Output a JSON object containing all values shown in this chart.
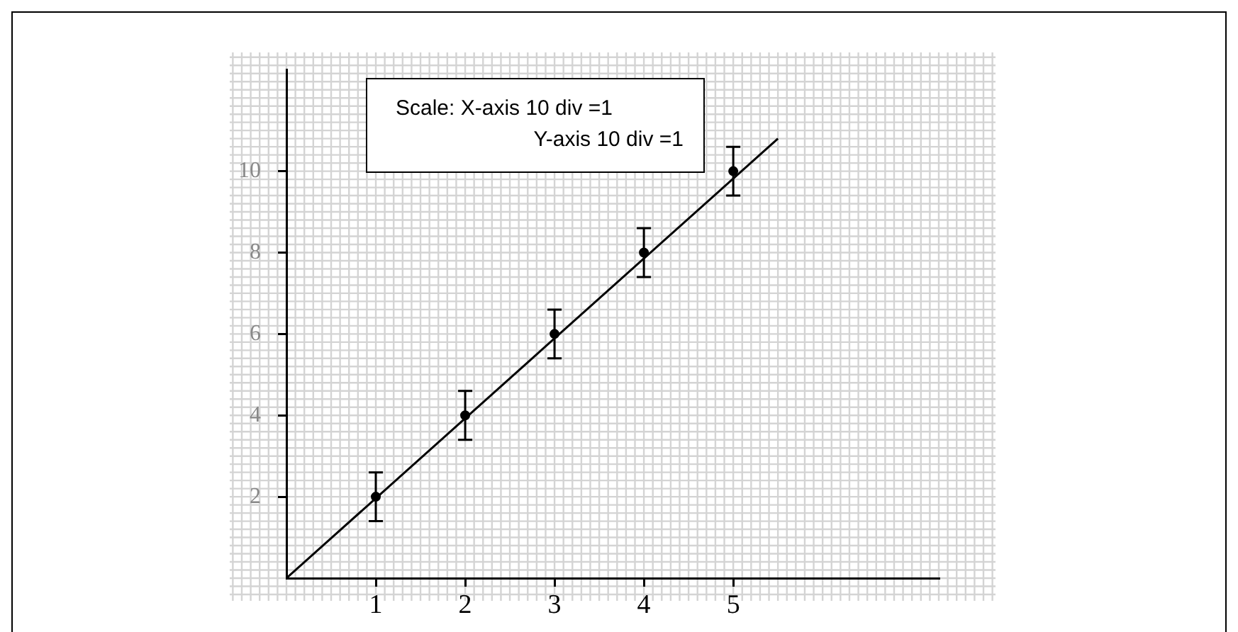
{
  "chart_data": {
    "type": "scatter",
    "x": [
      1,
      2,
      3,
      4,
      5
    ],
    "series": [
      {
        "color": "#000000",
        "values": [
          2,
          4,
          6,
          8,
          10
        ],
        "errors": [
          0.6,
          0.6,
          0.6,
          0.6,
          0.6
        ],
        "marker": "circle"
      },
      {
        "type": "line",
        "color": "#000000",
        "x": [
          0,
          5.5
        ],
        "values": [
          0,
          10.8
        ],
        "marker": "none",
        "line_style": "solid"
      }
    ],
    "xlim": [
      0,
      7.3
    ],
    "ylim": [
      0,
      12.5
    ],
    "xticks": [
      1,
      2,
      3,
      4,
      5
    ],
    "yticks": [
      2,
      4,
      6,
      8,
      10
    ],
    "grid": true,
    "legend": false,
    "annotations": [
      "Scale: X-axis 10 div =1",
      "Y-axis 10 div =1"
    ]
  }
}
